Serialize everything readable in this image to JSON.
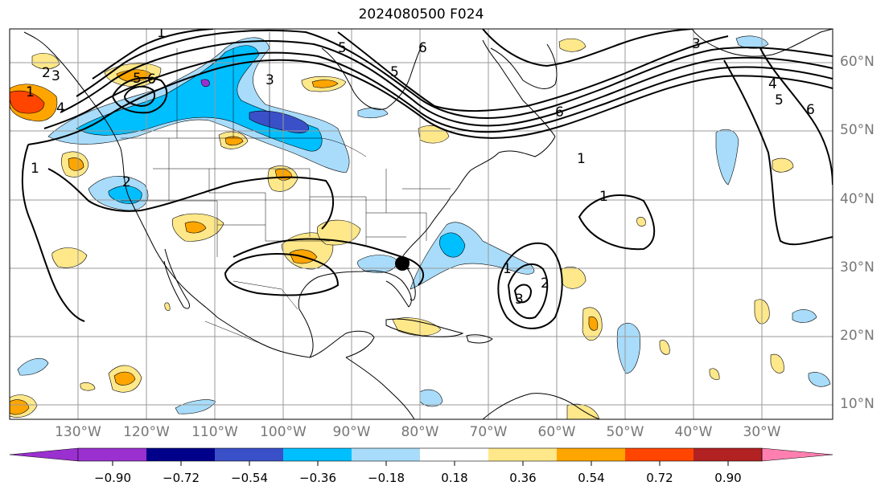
{
  "title": "2024080500 F024",
  "lat_labels": [
    "60°N",
    "50°N",
    "40°N",
    "30°N",
    "20°N",
    "10°N"
  ],
  "lon_labels": [
    "130°W",
    "120°W",
    "110°W",
    "100°W",
    "90°W",
    "80°W",
    "70°W",
    "60°W",
    "50°W",
    "40°W",
    "30°W"
  ],
  "colorbar": {
    "ticks": [
      "−0.90",
      "−0.72",
      "−0.54",
      "−0.36",
      "−0.18",
      "0.18",
      "0.36",
      "0.54",
      "0.72",
      "0.90"
    ],
    "colors": [
      "#9b30d0",
      "#00008b",
      "#3a50c8",
      "#00bfff",
      "#a8dcfa",
      "#ffffff",
      "#ffe88a",
      "#ffa500",
      "#ff4500",
      "#b22222",
      "#ff80b0"
    ]
  },
  "contour_labels": [
    "1",
    "2",
    "3",
    "4",
    "5",
    "6",
    "1",
    "2",
    "3",
    "5",
    "6",
    "5",
    "6",
    "1",
    "2",
    "3",
    "4",
    "5",
    "6",
    "1",
    "1",
    "1",
    "2",
    "3"
  ],
  "marker": {
    "type": "storm-center-dot",
    "color": "#000000"
  }
}
